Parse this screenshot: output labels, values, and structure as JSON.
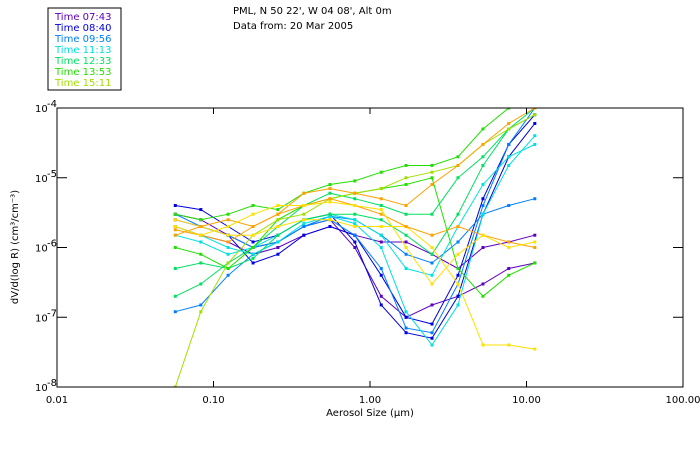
{
  "chart_data": {
    "type": "line",
    "title_lines": [
      "PML, N 50 22', W 04 08', Alt 0m",
      "Data from: 20 Mar 2005"
    ],
    "xlabel": "Aerosol Size (µm)",
    "ylabel": "dV/d(log R)  (cm³/cm⁻³)",
    "xscale": "log",
    "yscale": "log",
    "xlim": [
      0.01,
      100
    ],
    "ylim": [
      1e-08,
      0.0001
    ],
    "x_ticks": [
      {
        "value": 0.01,
        "label": "0.01"
      },
      {
        "value": 0.1,
        "label": "0.10"
      },
      {
        "value": 1,
        "label": "1.00"
      },
      {
        "value": 10,
        "label": "10.00"
      },
      {
        "value": 100,
        "label": "100.00"
      }
    ],
    "y_ticks": [
      {
        "value": 0.0001,
        "label": "10",
        "exp": "-4"
      },
      {
        "value": 1e-05,
        "label": "10",
        "exp": "-5"
      },
      {
        "value": 1e-06,
        "label": "10",
        "exp": "-6"
      },
      {
        "value": 1e-07,
        "label": "10",
        "exp": "-7"
      },
      {
        "value": 1e-08,
        "label": "10",
        "exp": "-8"
      }
    ],
    "legend": {
      "placement": "top-left",
      "entries": [
        {
          "label": "Time 07:43",
          "color": "#6000c0"
        },
        {
          "label": "Time 08:40",
          "color": "#0000e0"
        },
        {
          "label": "Time 09:56",
          "color": "#0080ff"
        },
        {
          "label": "Time 11:13",
          "color": "#00e0e0"
        },
        {
          "label": "Time 12:33",
          "color": "#00e060"
        },
        {
          "label": "Time 13:53",
          "color": "#20e000"
        },
        {
          "label": "Time 15:11",
          "color": "#a0e000"
        }
      ]
    },
    "x": [
      0.057,
      0.083,
      0.124,
      0.179,
      0.258,
      0.378,
      0.555,
      0.8,
      1.18,
      1.7,
      2.49,
      3.65,
      5.27,
      7.7,
      11.3
    ],
    "series": [
      {
        "color": "#6000c0",
        "values": [
          2e-06,
          1.5e-06,
          1.2e-06,
          8e-07,
          1e-06,
          1.5e-06,
          2e-06,
          1.5e-06,
          1.2e-06,
          1.2e-06,
          8e-07,
          5e-07,
          1e-06,
          1.2e-06,
          1.5e-06
        ]
      },
      {
        "color": "#6000c0",
        "values": [
          3e-06,
          2.5e-06,
          1.5e-06,
          1e-06,
          1.2e-06,
          2e-06,
          2.5e-06,
          1e-06,
          2e-07,
          1e-07,
          1.5e-07,
          2e-07,
          3e-07,
          5e-07,
          6e-07
        ]
      },
      {
        "color": "#0000e0",
        "values": [
          4e-06,
          3.5e-06,
          2e-06,
          1.2e-06,
          1.5e-06,
          2.5e-06,
          3e-06,
          1.2e-06,
          1.5e-07,
          6e-08,
          5e-08,
          2e-07,
          3e-06,
          2e-05,
          6e-05
        ]
      },
      {
        "color": "#0000e0",
        "values": [
          2.5e-06,
          2e-06,
          1.5e-06,
          6e-07,
          8e-07,
          1.5e-06,
          2e-06,
          1.5e-06,
          4e-07,
          1e-07,
          8e-08,
          4e-07,
          5e-06,
          3e-05,
          8e-05
        ]
      },
      {
        "color": "#0080ff",
        "values": [
          1.2e-07,
          1.5e-07,
          4e-07,
          8e-07,
          1.2e-06,
          2e-06,
          2.5e-06,
          1.5e-06,
          5e-07,
          7e-08,
          6e-08,
          3e-07,
          4e-06,
          3e-05,
          0.0001
        ]
      },
      {
        "color": "#0080ff",
        "values": [
          3e-06,
          2e-06,
          1.5e-06,
          1e-06,
          1.2e-06,
          2e-06,
          2.8e-06,
          2.5e-06,
          1.5e-06,
          8e-07,
          6e-07,
          1.2e-06,
          3e-06,
          4e-06,
          5e-06
        ]
      },
      {
        "color": "#00e0e0",
        "values": [
          2e-06,
          1.5e-06,
          1e-06,
          8e-07,
          1.2e-06,
          2.2e-06,
          2.8e-06,
          2.2e-06,
          1e-06,
          1.2e-07,
          4e-08,
          1.5e-07,
          3e-06,
          1.5e-05,
          4e-05
        ]
      },
      {
        "color": "#00e0e0",
        "values": [
          1.5e-06,
          1.2e-06,
          8e-07,
          1e-06,
          1.5e-06,
          2.5e-06,
          3e-06,
          2.5e-06,
          1.5e-06,
          5e-07,
          4e-07,
          2e-06,
          8e-06,
          2e-05,
          3e-05
        ]
      },
      {
        "color": "#00e060",
        "values": [
          5e-07,
          6e-07,
          5e-07,
          7e-07,
          1.5e-06,
          2.5e-06,
          3e-06,
          3e-06,
          2.5e-06,
          1.5e-06,
          8e-07,
          3e-06,
          1.5e-05,
          5e-05,
          8e-05
        ]
      },
      {
        "color": "#00e060",
        "values": [
          2e-07,
          3e-07,
          6e-07,
          1e-06,
          2e-06,
          4e-06,
          6e-06,
          5e-06,
          4e-06,
          3e-06,
          3e-06,
          1e-05,
          2e-05,
          5e-05,
          0.0001
        ]
      },
      {
        "color": "#20e000",
        "values": [
          3e-06,
          2.5e-06,
          3e-06,
          4e-06,
          3.5e-06,
          6e-06,
          8e-06,
          9e-06,
          1.2e-05,
          1.5e-05,
          1.5e-05,
          2e-05,
          5e-05,
          0.0001,
          0.0001
        ]
      },
      {
        "color": "#20e000",
        "values": [
          1e-06,
          8e-07,
          5e-07,
          1e-06,
          2.5e-06,
          4e-06,
          5e-06,
          6e-06,
          7e-06,
          8e-06,
          1e-05,
          5e-07,
          2e-07,
          4e-07,
          6e-07
        ]
      },
      {
        "color": "#a0e000",
        "values": [
          1e-08,
          1.2e-07,
          6e-07,
          1.5e-06,
          2.5e-06,
          3e-06,
          5e-06,
          6e-06,
          7e-06,
          1e-05,
          1.2e-05,
          1.5e-05,
          3e-05,
          5e-05,
          8e-05
        ]
      },
      {
        "color": "#ffe000",
        "values": [
          2.5e-06,
          2e-06,
          1.5e-06,
          1.5e-06,
          2e-06,
          2.5e-06,
          2.5e-06,
          2e-06,
          2e-06,
          2e-06,
          1e-06,
          3e-07,
          4e-08,
          4e-08,
          3.5e-08
        ]
      },
      {
        "color": "#ffa000",
        "values": [
          1.8e-06,
          1.5e-06,
          1.2e-06,
          2e-06,
          3e-06,
          4e-06,
          5e-06,
          4e-06,
          3e-06,
          2e-06,
          1.5e-06,
          2e-06,
          1.5e-06,
          1.2e-06,
          1e-06
        ]
      },
      {
        "color": "#ffa000",
        "values": [
          1.5e-06,
          2e-06,
          2.5e-06,
          2e-06,
          3e-06,
          6e-06,
          7e-06,
          6e-06,
          5e-06,
          4e-06,
          8e-06,
          1.5e-05,
          3e-05,
          6e-05,
          0.0001
        ]
      },
      {
        "color": "#ffe000",
        "values": [
          2e-06,
          1.5e-06,
          2e-06,
          3e-06,
          4e-06,
          4e-06,
          4.5e-06,
          4e-06,
          3.5e-06,
          1e-06,
          3e-07,
          8e-07,
          1.5e-06,
          1e-06,
          1.2e-06
        ]
      }
    ]
  }
}
